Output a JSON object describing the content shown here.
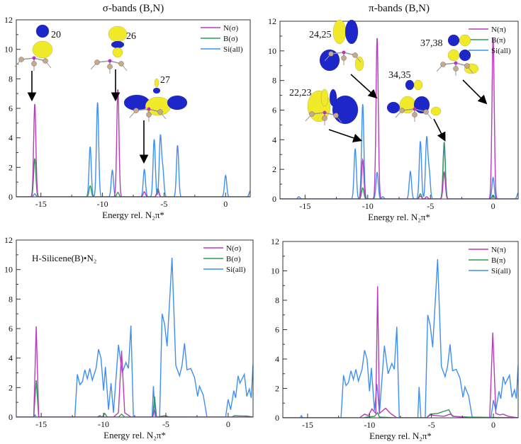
{
  "colors": {
    "N": "#b93bbb",
    "B": "#2f9a5c",
    "Si": "#3f8ff2",
    "orbital_positive": "#f0ea2a",
    "orbital_negative": "#1d26c8"
  },
  "chart_data": [
    {
      "type": "line",
      "title": "σ-bands (B,N)",
      "xlabel": "Energy rel. N₂π*",
      "xlim": [
        -17,
        2
      ],
      "ylim": [
        0,
        12
      ],
      "xticks": [
        "-15",
        "-10",
        "-5",
        "0"
      ],
      "yticks": [
        "0",
        "2",
        "4",
        "6",
        "8",
        "10",
        "12"
      ],
      "legend_position": "top-right",
      "grid": false,
      "encoding": "gaussian-peaks [energy, height]",
      "series": [
        {
          "key": "N",
          "name": "N(σ)",
          "peaks": [
            [
              -15.5,
              6.3
            ],
            [
              -8.75,
              7.3
            ],
            [
              -6.6,
              0.35
            ],
            [
              -5.5,
              0.4
            ]
          ]
        },
        {
          "key": "B",
          "name": "B(σ)",
          "peaks": [
            [
              -15.5,
              2.6
            ],
            [
              -11,
              0.75
            ],
            [
              -8.75,
              0.3
            ],
            [
              -5.5,
              0.55
            ]
          ]
        },
        {
          "key": "Si",
          "name": "Si(all)",
          "peaks": [
            [
              -15.5,
              0.2
            ],
            [
              -11,
              3.4
            ],
            [
              -10.4,
              6.4
            ],
            [
              -9.2,
              1.8
            ],
            [
              -6.6,
              1.85
            ],
            [
              -5.8,
              3.9
            ],
            [
              -5.3,
              4.05
            ],
            [
              -5.1,
              1.8
            ],
            [
              -3.9,
              3.5
            ],
            [
              0,
              1.45
            ],
            [
              2,
              0.4
            ]
          ]
        }
      ],
      "annotations": [
        {
          "label": "20",
          "arrow_to": [
            -15.5,
            6.5
          ]
        },
        {
          "label": "26",
          "arrow_to": [
            -8.75,
            7.5
          ]
        },
        {
          "label": "27",
          "arrow_to": [
            -6.6,
            2.0
          ]
        }
      ]
    },
    {
      "type": "line",
      "title": "π-bands (B,N)",
      "xlabel": "Energy rel. N₂π*",
      "xlim": [
        -17,
        2
      ],
      "ylim": [
        0,
        12
      ],
      "xticks": [
        "-15",
        "-10",
        "-5",
        "0"
      ],
      "yticks": [
        "0",
        "2",
        "4",
        "6",
        "8",
        "10",
        "12"
      ],
      "legend_position": "top-right",
      "grid": false,
      "encoding": "gaussian-peaks [energy, height]",
      "series": [
        {
          "key": "N",
          "name": "N(π)",
          "peaks": [
            [
              -10.4,
              2.65
            ],
            [
              -9.25,
              10.9
            ],
            [
              -5.8,
              0.2
            ],
            [
              -5.3,
              0.15
            ],
            [
              -3.9,
              1.8
            ],
            [
              0,
              10.9
            ]
          ]
        },
        {
          "key": "B",
          "name": "B(π)",
          "peaks": [
            [
              -10.4,
              0.75
            ],
            [
              -5.8,
              0.35
            ],
            [
              -3.9,
              3.85
            ],
            [
              0,
              0.25
            ]
          ]
        },
        {
          "key": "Si",
          "name": "Si(all)",
          "peaks": [
            [
              -15.5,
              0.15
            ],
            [
              -11,
              3.4
            ],
            [
              -10.4,
              6.4
            ],
            [
              -9.25,
              1.8
            ],
            [
              -8.8,
              0.15
            ],
            [
              -6.6,
              1.85
            ],
            [
              -5.8,
              3.9
            ],
            [
              -5.3,
              4.05
            ],
            [
              -5.1,
              1.8
            ],
            [
              -3.9,
              3.5
            ],
            [
              0,
              1.45
            ],
            [
              2,
              0.4
            ]
          ]
        }
      ],
      "annotations": [
        {
          "label": "24,25",
          "arrow_to": [
            -9.3,
            6.9
          ]
        },
        {
          "label": "22,23",
          "arrow_to": [
            -10.5,
            4.0
          ]
        },
        {
          "label": "34,35",
          "arrow_to": [
            -3.9,
            4.0
          ]
        },
        {
          "label": "37,38",
          "arrow_to": [
            -0.2,
            6.9
          ]
        }
      ]
    },
    {
      "type": "line",
      "title": "",
      "annotation_text": "H-Silicene(B)•N₂",
      "xlabel": "Energy rel. N₂π*",
      "xlim": [
        -17,
        2
      ],
      "ylim": [
        0,
        12
      ],
      "xticks": [
        "-15",
        "-10",
        "-5",
        "0"
      ],
      "yticks": [
        "0",
        "2",
        "4",
        "6",
        "8",
        "10",
        "12"
      ],
      "legend_position": "top-right",
      "grid": false,
      "series": [
        {
          "key": "N",
          "name": "N(σ)",
          "points": [
            [
              -17,
              0
            ],
            [
              -15.6,
              0
            ],
            [
              -15.4,
              6.15
            ],
            [
              -15.2,
              0
            ],
            [
              -9.2,
              0
            ],
            [
              -8.8,
              0.3
            ],
            [
              -8.55,
              4.5
            ],
            [
              -8.3,
              0.3
            ],
            [
              -7.8,
              0
            ],
            [
              -6.05,
              0
            ],
            [
              -5.9,
              0.5
            ],
            [
              -5.75,
              0
            ],
            [
              2,
              0
            ]
          ]
        },
        {
          "key": "B",
          "name": "B(σ)",
          "points": [
            [
              -17,
              0
            ],
            [
              -15.6,
              0
            ],
            [
              -15.4,
              2.5
            ],
            [
              -15.2,
              0
            ],
            [
              -10.5,
              0
            ],
            [
              -10.3,
              0.1
            ],
            [
              -10.1,
              0
            ],
            [
              -9.9,
              0.25
            ],
            [
              -9.7,
              0
            ],
            [
              -8.8,
              0
            ],
            [
              -8.55,
              0.2
            ],
            [
              -8.3,
              0
            ],
            [
              -6.05,
              0
            ],
            [
              -5.9,
              1.4
            ],
            [
              -5.75,
              0
            ],
            [
              -5.0,
              0.1
            ],
            [
              -4.8,
              0.02
            ],
            [
              0.3,
              0
            ],
            [
              0.5,
              0.1
            ],
            [
              1,
              0.08
            ],
            [
              1.5,
              0.07
            ],
            [
              2,
              0
            ]
          ]
        },
        {
          "key": "Si",
          "name": "Si(all)",
          "points": [
            [
              -17,
              0
            ],
            [
              -15.6,
              0
            ],
            [
              -15.5,
              0.15
            ],
            [
              -15.4,
              0
            ],
            [
              -12.3,
              0
            ],
            [
              -12.1,
              2.9
            ],
            [
              -11.9,
              2.2
            ],
            [
              -11.7,
              2.4
            ],
            [
              -11.5,
              3.2
            ],
            [
              -11.3,
              2.6
            ],
            [
              -11.1,
              3.3
            ],
            [
              -10.9,
              2.5
            ],
            [
              -10.6,
              3.3
            ],
            [
              -10.4,
              4.6
            ],
            [
              -10.2,
              4.0
            ],
            [
              -10.0,
              1.8
            ],
            [
              -9.85,
              3.4
            ],
            [
              -9.6,
              0.5
            ],
            [
              -9.4,
              2.3
            ],
            [
              -9.2,
              0.3
            ],
            [
              -8.8,
              4.9
            ],
            [
              -8.5,
              3.0
            ],
            [
              -8.2,
              3.7
            ],
            [
              -8.0,
              3.3
            ],
            [
              -7.8,
              6.2
            ],
            [
              -7.6,
              0
            ],
            [
              -6.1,
              0
            ],
            [
              -6.0,
              2.1
            ],
            [
              -5.85,
              0
            ],
            [
              -5.5,
              0
            ],
            [
              -5.3,
              7.0
            ],
            [
              -5.1,
              6.3
            ],
            [
              -4.9,
              4.8
            ],
            [
              -4.5,
              10.8
            ],
            [
              -4.2,
              3.5
            ],
            [
              -3.9,
              2.8
            ],
            [
              -3.7,
              3.5
            ],
            [
              -3.5,
              5.0
            ],
            [
              -3.3,
              3.2
            ],
            [
              -3.0,
              3.3
            ],
            [
              -2.7,
              2.7
            ],
            [
              -2.45,
              1.4
            ],
            [
              -2.3,
              2.1
            ],
            [
              -2.0,
              1.5
            ],
            [
              -1.7,
              0
            ],
            [
              -0.2,
              0
            ],
            [
              0,
              1.2
            ],
            [
              0.2,
              0.5
            ],
            [
              0.45,
              1.8
            ],
            [
              0.6,
              1.3
            ],
            [
              0.8,
              2.8
            ],
            [
              0.95,
              2.3
            ],
            [
              1.3,
              2.9
            ],
            [
              1.5,
              1.4
            ],
            [
              1.7,
              1.9
            ],
            [
              1.85,
              1.3
            ],
            [
              2,
              3.6
            ]
          ]
        }
      ]
    },
    {
      "type": "line",
      "title": "",
      "xlabel": "Energy rel. N₂π*",
      "xlim": [
        -17,
        2
      ],
      "ylim": [
        0,
        12
      ],
      "xticks": [
        "-15",
        "-10",
        "-5",
        "0"
      ],
      "yticks": [
        "0",
        "2",
        "4",
        "6",
        "8",
        "10",
        "12"
      ],
      "legend_position": "top-right",
      "grid": false,
      "series": [
        {
          "key": "N",
          "name": "N(π)",
          "points": [
            [
              -17,
              0
            ],
            [
              -10.8,
              0
            ],
            [
              -10.4,
              0.25
            ],
            [
              -10.1,
              0.15
            ],
            [
              -9.8,
              0.6
            ],
            [
              -9.5,
              0.3
            ],
            [
              -9.35,
              8.95
            ],
            [
              -9.2,
              0.3
            ],
            [
              -8.7,
              0.65
            ],
            [
              -8.3,
              0.3
            ],
            [
              -7.8,
              0
            ],
            [
              -5.4,
              0
            ],
            [
              -5.1,
              0.2
            ],
            [
              -4.6,
              0.15
            ],
            [
              -4,
              0.1
            ],
            [
              -3.5,
              0.25
            ],
            [
              -3.2,
              0.1
            ],
            [
              -2,
              0
            ],
            [
              -0.3,
              0
            ],
            [
              -0.05,
              5.8
            ],
            [
              0.2,
              0.3
            ],
            [
              0.5,
              0.2
            ],
            [
              0.8,
              0.25
            ],
            [
              1.2,
              0.1
            ],
            [
              2,
              0
            ]
          ]
        },
        {
          "key": "B",
          "name": "B(π)",
          "points": [
            [
              -17,
              0
            ],
            [
              -10.5,
              0
            ],
            [
              -10.2,
              0.05
            ],
            [
              -9.6,
              0.1
            ],
            [
              -9.35,
              0.35
            ],
            [
              -9.2,
              0.05
            ],
            [
              -8,
              0
            ],
            [
              -5.4,
              0
            ],
            [
              -5.1,
              0.25
            ],
            [
              -4.5,
              0.3
            ],
            [
              -3.6,
              0.55
            ],
            [
              -3.3,
              0.1
            ],
            [
              -2,
              0.05
            ],
            [
              2,
              0
            ]
          ]
        },
        {
          "key": "Si",
          "name": "Si(all)",
          "points": [
            [
              -17,
              0
            ],
            [
              -15.6,
              0
            ],
            [
              -15.5,
              0.15
            ],
            [
              -15.4,
              0
            ],
            [
              -12.3,
              0
            ],
            [
              -12.1,
              2.9
            ],
            [
              -11.9,
              2.2
            ],
            [
              -11.7,
              2.4
            ],
            [
              -11.5,
              3.2
            ],
            [
              -11.3,
              2.6
            ],
            [
              -11.1,
              3.3
            ],
            [
              -10.9,
              2.5
            ],
            [
              -10.6,
              3.3
            ],
            [
              -10.4,
              4.6
            ],
            [
              -10.2,
              4.0
            ],
            [
              -10.0,
              1.8
            ],
            [
              -9.85,
              3.4
            ],
            [
              -9.6,
              0.5
            ],
            [
              -9.4,
              2.3
            ],
            [
              -9.2,
              0.3
            ],
            [
              -8.8,
              4.9
            ],
            [
              -8.5,
              3.0
            ],
            [
              -8.2,
              3.7
            ],
            [
              -8.0,
              3.3
            ],
            [
              -7.8,
              6.2
            ],
            [
              -7.6,
              0
            ],
            [
              -6.1,
              0
            ],
            [
              -6.0,
              2.1
            ],
            [
              -5.85,
              0
            ],
            [
              -5.5,
              0
            ],
            [
              -5.3,
              7.0
            ],
            [
              -5.1,
              6.3
            ],
            [
              -4.9,
              4.8
            ],
            [
              -4.5,
              10.8
            ],
            [
              -4.2,
              3.5
            ],
            [
              -3.9,
              2.8
            ],
            [
              -3.7,
              3.5
            ],
            [
              -3.5,
              5.0
            ],
            [
              -3.3,
              3.2
            ],
            [
              -3.0,
              3.3
            ],
            [
              -2.7,
              2.7
            ],
            [
              -2.45,
              1.4
            ],
            [
              -2.3,
              2.1
            ],
            [
              -2.0,
              1.5
            ],
            [
              -1.7,
              0
            ],
            [
              -0.2,
              0
            ],
            [
              0,
              1.2
            ],
            [
              0.2,
              0.5
            ],
            [
              0.45,
              1.8
            ],
            [
              0.6,
              1.3
            ],
            [
              0.8,
              2.8
            ],
            [
              0.95,
              2.3
            ],
            [
              1.3,
              2.9
            ],
            [
              1.5,
              1.4
            ],
            [
              1.7,
              1.9
            ],
            [
              1.85,
              1.3
            ],
            [
              2,
              3.6
            ]
          ]
        }
      ]
    }
  ]
}
